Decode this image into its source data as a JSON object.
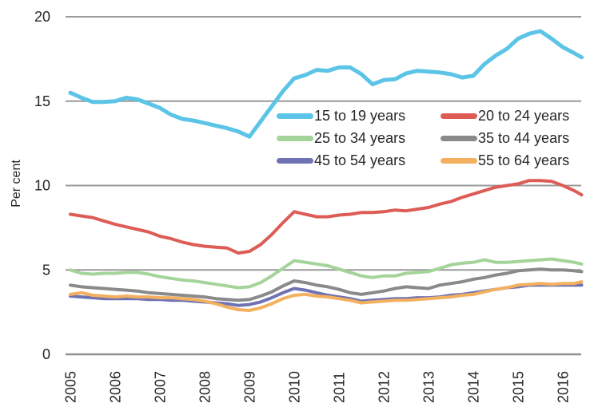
{
  "chart_data": {
    "type": "line",
    "title": "",
    "xlabel": "",
    "ylabel": "Per cent",
    "ylim": [
      0,
      20
    ],
    "yticks": [
      0,
      5,
      10,
      15,
      20
    ],
    "grid": "horizontal-only",
    "legend_position": "inside top-right, two columns, no border",
    "x_labels": [
      "2005",
      "2006",
      "2007",
      "2008",
      "2009",
      "2010",
      "2011",
      "2012",
      "2013",
      "2014",
      "2015",
      "2016"
    ],
    "x_label_rotation": "vertical",
    "x": [
      2005.0,
      2005.25,
      2005.5,
      2005.75,
      2006.0,
      2006.25,
      2006.5,
      2006.75,
      2007.0,
      2007.25,
      2007.5,
      2007.75,
      2008.0,
      2008.25,
      2008.5,
      2008.75,
      2009.0,
      2009.25,
      2009.5,
      2009.75,
      2010.0,
      2010.25,
      2010.5,
      2010.75,
      2011.0,
      2011.25,
      2011.5,
      2011.75,
      2012.0,
      2012.25,
      2012.5,
      2012.75,
      2013.0,
      2013.25,
      2013.5,
      2013.75,
      2014.0,
      2014.25,
      2014.5,
      2014.75,
      2015.0,
      2015.25,
      2015.5,
      2015.75,
      2016.0,
      2016.25,
      2016.42
    ],
    "series": [
      {
        "name": "15 to 19 years",
        "color": "#5BC4E7",
        "values": [
          15.5,
          15.2,
          14.95,
          14.95,
          15.0,
          15.2,
          15.1,
          14.85,
          14.6,
          14.2,
          13.95,
          13.85,
          13.7,
          13.55,
          13.4,
          13.2,
          12.9,
          13.8,
          14.7,
          15.6,
          16.35,
          16.55,
          16.85,
          16.8,
          17.0,
          17.0,
          16.6,
          16.0,
          16.25,
          16.3,
          16.65,
          16.8,
          16.75,
          16.7,
          16.6,
          16.4,
          16.5,
          17.2,
          17.7,
          18.1,
          18.7,
          19.0,
          19.15,
          18.7,
          18.2,
          17.85,
          17.6
        ]
      },
      {
        "name": "20 to 24 years",
        "color": "#DD5C56",
        "values": [
          8.3,
          8.2,
          8.1,
          7.9,
          7.7,
          7.55,
          7.4,
          7.25,
          7.0,
          6.85,
          6.65,
          6.5,
          6.4,
          6.35,
          6.3,
          6.0,
          6.1,
          6.5,
          7.1,
          7.8,
          8.45,
          8.3,
          8.15,
          8.15,
          8.25,
          8.3,
          8.4,
          8.4,
          8.45,
          8.55,
          8.5,
          8.6,
          8.7,
          8.9,
          9.05,
          9.3,
          9.5,
          9.7,
          9.9,
          10.0,
          10.1,
          10.3,
          10.3,
          10.25,
          10.0,
          9.7,
          9.45
        ]
      },
      {
        "name": "25 to 34 years",
        "color": "#A5D49B",
        "values": [
          5.0,
          4.8,
          4.75,
          4.8,
          4.8,
          4.85,
          4.85,
          4.75,
          4.6,
          4.5,
          4.4,
          4.35,
          4.25,
          4.15,
          4.05,
          3.95,
          4.0,
          4.25,
          4.65,
          5.1,
          5.55,
          5.45,
          5.35,
          5.25,
          5.05,
          4.85,
          4.65,
          4.55,
          4.65,
          4.65,
          4.8,
          4.85,
          4.9,
          5.1,
          5.3,
          5.4,
          5.45,
          5.6,
          5.45,
          5.45,
          5.5,
          5.55,
          5.6,
          5.65,
          5.55,
          5.45,
          5.35
        ]
      },
      {
        "name": "35 to 44 years",
        "color": "#8A8A8C",
        "values": [
          4.1,
          4.0,
          3.95,
          3.9,
          3.85,
          3.8,
          3.75,
          3.65,
          3.6,
          3.55,
          3.5,
          3.45,
          3.4,
          3.3,
          3.25,
          3.2,
          3.25,
          3.45,
          3.7,
          4.05,
          4.35,
          4.25,
          4.1,
          4.0,
          3.85,
          3.65,
          3.55,
          3.65,
          3.75,
          3.9,
          4.0,
          3.95,
          3.9,
          4.1,
          4.2,
          4.3,
          4.45,
          4.55,
          4.7,
          4.8,
          4.95,
          5.0,
          5.05,
          5.0,
          5.0,
          4.95,
          4.9
        ]
      },
      {
        "name": "45 to 54 years",
        "color": "#6F73B4",
        "values": [
          3.45,
          3.4,
          3.35,
          3.3,
          3.3,
          3.3,
          3.3,
          3.25,
          3.25,
          3.2,
          3.2,
          3.15,
          3.1,
          3.05,
          3.0,
          2.9,
          2.95,
          3.1,
          3.35,
          3.65,
          3.9,
          3.8,
          3.65,
          3.5,
          3.4,
          3.3,
          3.15,
          3.2,
          3.25,
          3.3,
          3.3,
          3.35,
          3.35,
          3.4,
          3.5,
          3.55,
          3.65,
          3.75,
          3.85,
          3.95,
          4.0,
          4.1,
          4.1,
          4.1,
          4.1,
          4.1,
          4.1
        ]
      },
      {
        "name": "55 to 64 years",
        "color": "#F3B05F",
        "values": [
          3.55,
          3.65,
          3.5,
          3.45,
          3.4,
          3.45,
          3.4,
          3.4,
          3.35,
          3.35,
          3.3,
          3.25,
          3.15,
          3.0,
          2.8,
          2.65,
          2.6,
          2.75,
          3.0,
          3.3,
          3.5,
          3.55,
          3.45,
          3.4,
          3.3,
          3.2,
          3.05,
          3.1,
          3.15,
          3.2,
          3.2,
          3.25,
          3.3,
          3.35,
          3.4,
          3.5,
          3.55,
          3.7,
          3.85,
          3.95,
          4.1,
          4.15,
          4.2,
          4.15,
          4.2,
          4.2,
          4.3
        ]
      }
    ],
    "style": {
      "gridline_color": "#9A9A9A",
      "axis_line_color": "#8F8F8F",
      "tick_label_color": "#262626",
      "background": "#ffffff"
    }
  }
}
